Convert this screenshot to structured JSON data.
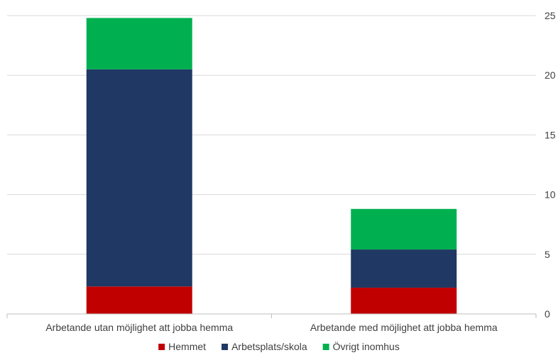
{
  "chart_data": {
    "type": "bar",
    "stacked": true,
    "categories": [
      "Arbetande utan möjlighet att jobba hemma",
      "Arbetande med möjlighet att jobba hemma"
    ],
    "series": [
      {
        "name": "Hemmet",
        "values": [
          2.3,
          2.2
        ],
        "color": "#c00000"
      },
      {
        "name": "Arbetsplats/skola",
        "values": [
          18.2,
          3.2
        ],
        "color": "#1f3864"
      },
      {
        "name": "Övrigt inomhus",
        "values": [
          4.3,
          3.4
        ],
        "color": "#00b050"
      }
    ],
    "title": "",
    "xlabel": "",
    "ylabel": "",
    "ylim": [
      0,
      25
    ],
    "yticks": [
      "0",
      "5",
      "10",
      "15",
      "20",
      "25"
    ],
    "y_axis_side": "right",
    "grid": true,
    "legend_position": "bottom"
  }
}
